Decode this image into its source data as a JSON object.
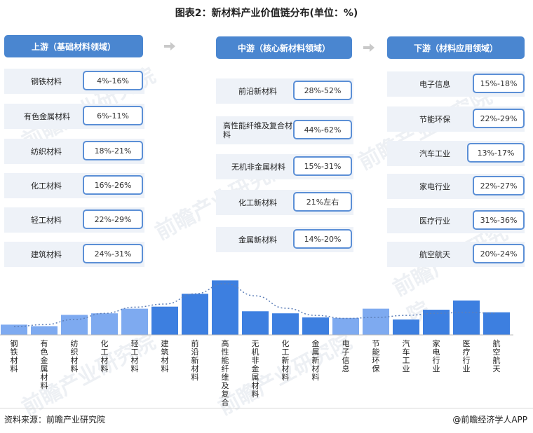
{
  "title": "图表2：新材料产业价值链分布(单位：%)",
  "columns": [
    {
      "header": "上游（基础材料领域）",
      "rows": [
        {
          "label": "钢铁材料",
          "range": "4%-16%"
        },
        {
          "label": "有色金属材料",
          "range": "6%-11%"
        },
        {
          "label": "纺织材料",
          "range": "18%-21%"
        },
        {
          "label": "化工材料",
          "range": "16%-26%"
        },
        {
          "label": "轻工材料",
          "range": "22%-29%"
        },
        {
          "label": "建筑材料",
          "range": "24%-31%"
        }
      ]
    },
    {
      "header": "中游（核心新材料领域）",
      "rows": [
        {
          "label": "前沿新材料",
          "range": "28%-52%"
        },
        {
          "label": "高性能纤维及复合材料",
          "range": "44%-62%"
        },
        {
          "label": "无机非金属材料",
          "range": "15%-31%"
        },
        {
          "label": "化工新材料",
          "range": "21%左右"
        },
        {
          "label": "金属新材料",
          "range": "14%-20%"
        }
      ]
    },
    {
      "header": "下游（材料应用领域）",
      "rows": [
        {
          "label": "电子信息",
          "range": "15%-18%"
        },
        {
          "label": "节能环保",
          "range": "22%-29%"
        },
        {
          "label": "汽车工业",
          "range": "13%-17%"
        },
        {
          "label": "家电行业",
          "range": "22%-27%"
        },
        {
          "label": "医疗行业",
          "range": "31%-36%"
        },
        {
          "label": "航空航天",
          "range": "20%-24%"
        }
      ]
    }
  ],
  "watermark": "前瞻产业研究院",
  "source": "资料来源：前瞻产业研究院",
  "brand": "@前瞻经济学人APP",
  "chart_data": {
    "type": "bar",
    "categories": [
      "钢铁材料",
      "有色金属材料",
      "纺织材料",
      "化工材料",
      "轻工材料",
      "建筑材料",
      "前沿新材料",
      "高性能纤维及复合材料",
      "无机非金属材料",
      "化工新材料",
      "金属新材料",
      "电子信息",
      "节能环保",
      "汽车工业",
      "家电行业",
      "医疗行业",
      "航空航天"
    ],
    "values": [
      10,
      8.5,
      19.5,
      21,
      25.5,
      27.5,
      40,
      53,
      23,
      21,
      17,
      16.5,
      25.5,
      15,
      24.5,
      33.5,
      22
    ],
    "trendline": [
      8,
      10,
      15,
      21,
      27,
      30,
      40,
      50,
      38,
      26,
      19,
      16,
      17,
      19,
      21,
      22,
      21
    ],
    "colors": [
      "#7eaaf0",
      "#7eaaf0",
      "#7eaaf0",
      "#7eaaf0",
      "#7eaaf0",
      "#3d7fe0",
      "#3d7fe0",
      "#3d7fe0",
      "#3d7fe0",
      "#3d7fe0",
      "#3d7fe0",
      "#7eaaf0",
      "#7eaaf0",
      "#3d7fe0",
      "#3d7fe0",
      "#3d7fe0",
      "#3d7fe0"
    ],
    "ylim": [
      0,
      60
    ]
  }
}
